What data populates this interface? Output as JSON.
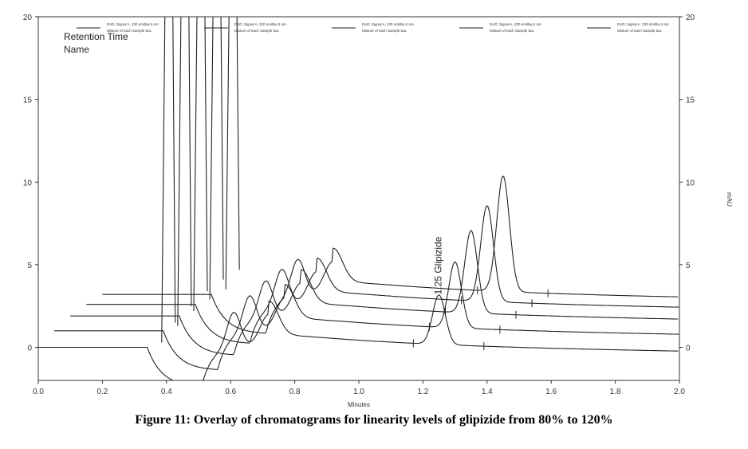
{
  "caption": "Figure 11: Overlay of chromatograms for linearity levels of glipizide from 80% to 120%",
  "chart_data": {
    "type": "line",
    "xlabel": "Minutes",
    "ylabel_right": "mAU",
    "xlim": [
      0.0,
      2.0
    ],
    "ylim": [
      -2,
      20
    ],
    "x_ticks": [
      "0.0",
      "0.2",
      "0.4",
      "0.6",
      "0.8",
      "1.0",
      "1.2",
      "1.4",
      "1.6",
      "1.8",
      "2.0"
    ],
    "y_ticks": [
      "0",
      "5",
      "10",
      "15",
      "20"
    ],
    "grid": false,
    "legend_placement": "top",
    "info_labels": [
      "Retention Time",
      "Name"
    ],
    "peak_annotation": "1.25 Glipizide",
    "legend": [
      {
        "line1": "DAD: Signal A, 230 nm/Bw:4 nm",
        "line2": "Mixture of each Sample 5uL"
      },
      {
        "line1": "DAD: Signal A, 230 nm/Bw:4 nm",
        "line2": "Mixture of each Sample 5uL"
      },
      {
        "line1": "DAD: Signal A, 230 nm/Bw:4 nm",
        "line2": "Mixture of each Sample 5uL"
      },
      {
        "line1": "DAD: Signal A, 230 nm/Bw:4 nm",
        "line2": "Mixture of each Sample 5uL"
      },
      {
        "line1": "DAD: Signal A, 230 nm/Bw:4 nm",
        "line2": "Mixture of each Sample 5uL"
      }
    ],
    "series": [
      {
        "x_offset": 0.0,
        "y_offset": 0.0,
        "peak_height": 3.0
      },
      {
        "x_offset": 0.05,
        "y_offset": 1.0,
        "peak_height": 4.0
      },
      {
        "x_offset": 0.1,
        "y_offset": 1.9,
        "peak_height": 5.0
      },
      {
        "x_offset": 0.15,
        "y_offset": 2.6,
        "peak_height": 5.8
      },
      {
        "x_offset": 0.2,
        "y_offset": 3.2,
        "peak_height": 7.0
      }
    ],
    "peak_retention_time": 1.25
  }
}
